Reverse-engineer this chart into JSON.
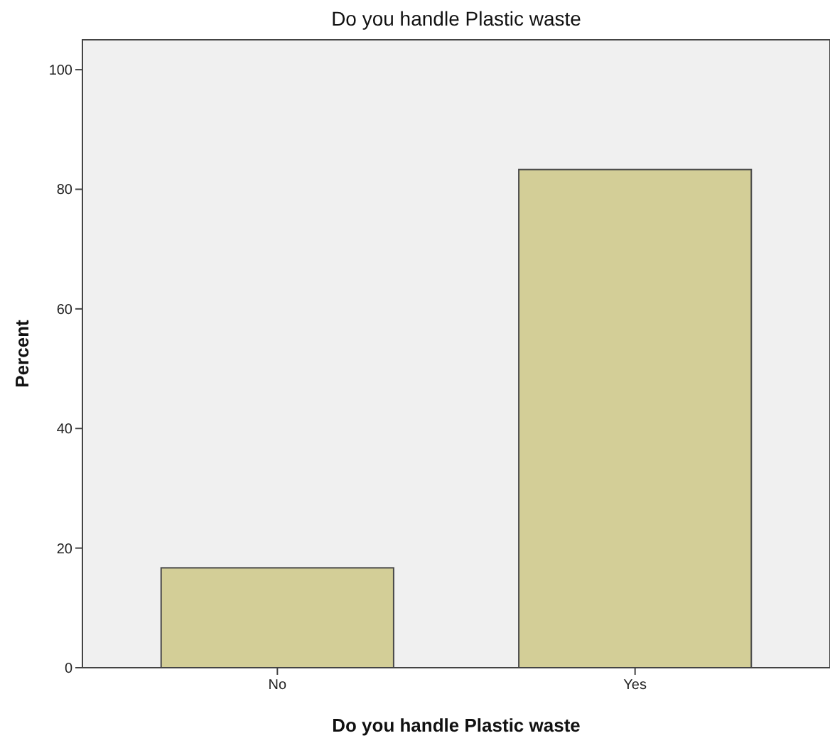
{
  "chart_data": {
    "type": "bar",
    "title": "Do you handle Plastic waste",
    "xlabel": "Do you handle Plastic waste",
    "ylabel": "Percent",
    "categories": [
      "No",
      "Yes"
    ],
    "values": [
      16.7,
      83.3
    ],
    "color": "#d3ce97",
    "ylim": [
      0,
      105
    ],
    "yticks": [
      0,
      20,
      40,
      60,
      80,
      100
    ],
    "grid": false
  }
}
